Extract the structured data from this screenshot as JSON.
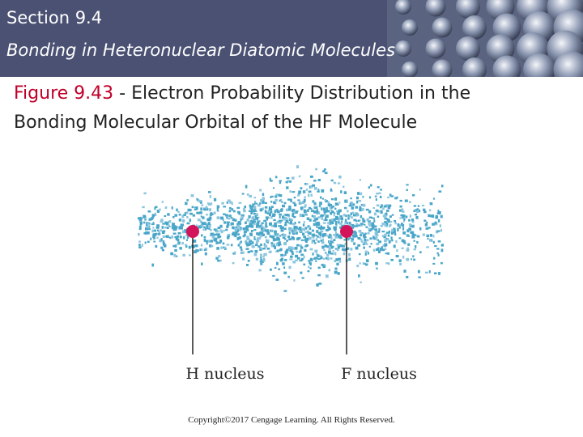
{
  "header": {
    "section": "Section 9.4",
    "subtitle": "Bonding in Heteronuclear Diatomic Molecules"
  },
  "figure": {
    "label": "Figure 9.43",
    "title": "- Electron Probability Distribution in the Bonding Molecular Orbital of the HF Molecule",
    "nuclei": [
      "H nucleus",
      "F nucleus"
    ]
  },
  "footer": {
    "copyright": "Copyright©2017 Cengage Learning. All Rights Reserved."
  }
}
